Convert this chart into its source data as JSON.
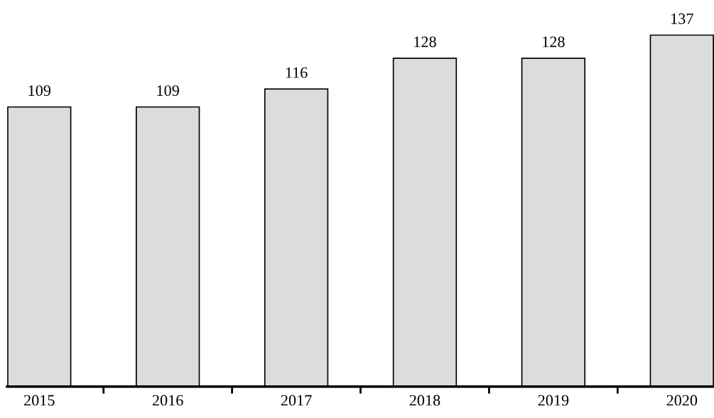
{
  "chart_data": {
    "type": "bar",
    "categories": [
      "2015",
      "2016",
      "2017",
      "2018",
      "2019",
      "2020"
    ],
    "values": [
      109,
      109,
      116,
      128,
      128,
      137
    ],
    "color": "#dcdcdc",
    "data_labels": true,
    "grid": false,
    "legend": false
  }
}
